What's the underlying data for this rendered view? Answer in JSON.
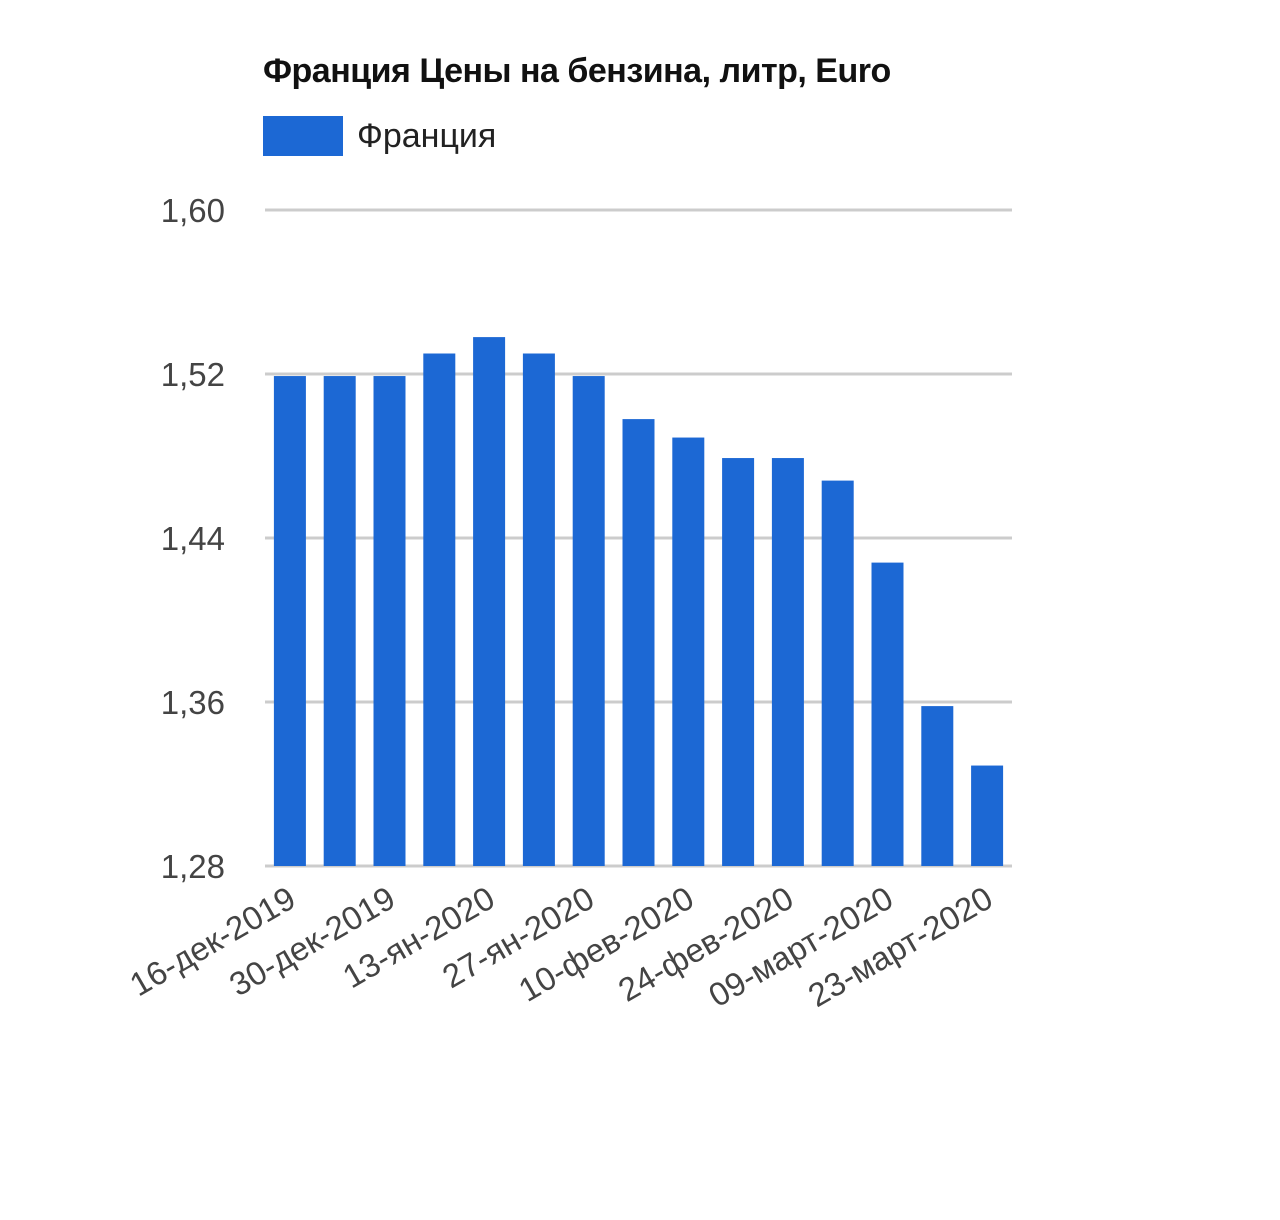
{
  "colors": {
    "bar": "#1c68d4",
    "grid": "#cccccc",
    "text": "#444444"
  },
  "chart_data": {
    "type": "bar",
    "title": "Франция Цены на бензина, литр, Euro",
    "legend_position": "top-left",
    "grid": true,
    "ylim": [
      1.28,
      1.6
    ],
    "y_ticks": [
      "1,60",
      "1,52",
      "1,44",
      "1,36",
      "1,28"
    ],
    "y_tick_values": [
      1.6,
      1.52,
      1.44,
      1.36,
      1.28
    ],
    "x_tick_labels": [
      "16-дек-2019",
      "30-дек-2019",
      "13-ян-2020",
      "27-ян-2020",
      "10-фев-2020",
      "24-фев-2020",
      "09-март-2020",
      "23-март-2020"
    ],
    "series": [
      {
        "name": "Франция",
        "values": [
          1.519,
          1.519,
          1.519,
          1.53,
          1.538,
          1.53,
          1.519,
          1.498,
          1.489,
          1.479,
          1.479,
          1.468,
          1.428,
          1.358,
          1.329
        ]
      }
    ]
  }
}
